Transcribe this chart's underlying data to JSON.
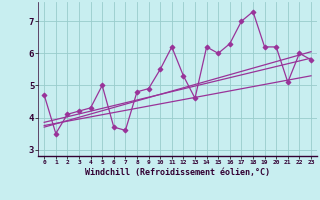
{
  "xlabel": "Windchill (Refroidissement éolien,°C)",
  "bg_color": "#c8eef0",
  "line_color": "#993399",
  "grid_color": "#99cccc",
  "x_ticks": [
    0,
    1,
    2,
    3,
    4,
    5,
    6,
    7,
    8,
    9,
    10,
    11,
    12,
    13,
    14,
    15,
    16,
    17,
    18,
    19,
    20,
    21,
    22,
    23
  ],
  "y_ticks": [
    3,
    4,
    5,
    6,
    7
  ],
  "xlim": [
    -0.5,
    23.5
  ],
  "ylim": [
    2.8,
    7.6
  ],
  "scatter_x": [
    0,
    1,
    2,
    3,
    4,
    5,
    6,
    7,
    8,
    9,
    10,
    11,
    12,
    13,
    14,
    15,
    16,
    17,
    18,
    19,
    20,
    21,
    22,
    23
  ],
  "scatter_y": [
    4.7,
    3.5,
    4.1,
    4.2,
    4.3,
    5.0,
    3.7,
    3.6,
    4.8,
    4.9,
    5.5,
    6.2,
    5.3,
    4.6,
    6.2,
    6.0,
    6.3,
    7.0,
    7.3,
    6.2,
    6.2,
    5.1,
    6.0,
    5.8
  ],
  "line1_x": [
    0,
    23
  ],
  "line1_y": [
    3.85,
    5.85
  ],
  "line2_x": [
    0,
    23
  ],
  "line2_y": [
    3.75,
    5.3
  ],
  "line3_x": [
    0,
    23
  ],
  "line3_y": [
    3.7,
    6.05
  ]
}
